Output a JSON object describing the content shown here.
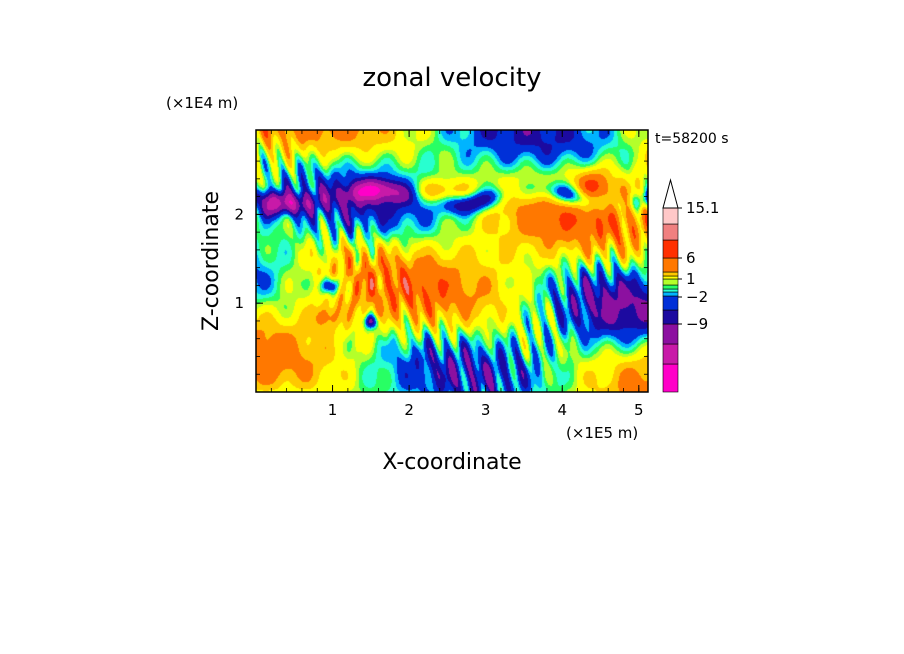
{
  "chart_data": {
    "type": "heatmap",
    "title": "zonal velocity",
    "xlabel": "X-coordinate",
    "ylabel": "Z-coordinate",
    "x_unit": "(×1E5 m)",
    "y_unit": "(×1E4 m)",
    "time_label": "t=58200 s",
    "x_range": [
      0,
      5.12
    ],
    "y_range": [
      0,
      2.95
    ],
    "x_ticks": [
      "1",
      "2",
      "3",
      "4",
      "5"
    ],
    "y_ticks": [
      "1",
      "2"
    ],
    "colorbar": {
      "levels": [
        -15,
        -12,
        -9,
        -6,
        -4,
        -2,
        -1,
        0,
        1,
        2,
        4,
        6,
        9,
        12,
        15.1
      ],
      "tick_labels": [
        "15.1",
        "6",
        "1",
        "−2",
        "−9"
      ],
      "colors": [
        "#ff00c8",
        "#c81aa8",
        "#8c10a0",
        "#1c0aa0",
        "#0030d8",
        "#00b4ff",
        "#28ffd0",
        "#28ff64",
        "#b4ff2a",
        "#ffff00",
        "#ffc800",
        "#ff7800",
        "#ff3000",
        "#f08080",
        "#ffc8c8"
      ],
      "extend_top": true
    }
  }
}
